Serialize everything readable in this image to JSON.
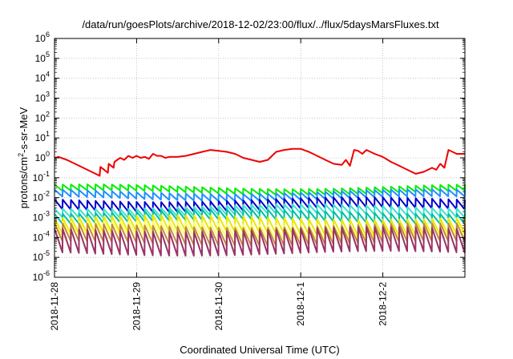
{
  "chart_data": {
    "type": "line",
    "title": "/data/run/goesPlots/archive/2018-12-02/23:00/flux/../flux/5daysMarsFluxes.txt",
    "xlabel": "Coordinated Universal Time (UTC)",
    "ylabel_base": "protons/cm",
    "ylabel_sup": "2",
    "ylabel_rest": "-s-sr-MeV",
    "ylog": true,
    "ylim": [
      -6,
      6
    ],
    "y_ticks": [
      -6,
      -5,
      -4,
      -3,
      -2,
      -1,
      0,
      1,
      2,
      3,
      4,
      5,
      6
    ],
    "y_tick_base": "10",
    "xlim": [
      0,
      5
    ],
    "x_ticks": [
      {
        "pos": 0,
        "label": "2018-11-28"
      },
      {
        "pos": 1,
        "label": "2018-11-29"
      },
      {
        "pos": 2,
        "label": "2018-11-30"
      },
      {
        "pos": 3,
        "label": "2018-12-1"
      },
      {
        "pos": 4,
        "label": "2018-12-2"
      }
    ],
    "grid": true,
    "sawtooth_period_days": 0.1,
    "series": [
      {
        "color": "#ee0000",
        "x": [
          0.0,
          0.05,
          0.15,
          0.3,
          0.45,
          0.55,
          0.56,
          0.65,
          0.66,
          0.72,
          0.73,
          0.8,
          0.85,
          0.9,
          0.95,
          1.0,
          1.05,
          1.1,
          1.15,
          1.2,
          1.25,
          1.3,
          1.35,
          1.4,
          1.5,
          1.6,
          1.7,
          1.8,
          1.9,
          2.0,
          2.1,
          2.2,
          2.3,
          2.4,
          2.5,
          2.6,
          2.7,
          2.8,
          2.9,
          3.0,
          3.1,
          3.2,
          3.3,
          3.4,
          3.5,
          3.55,
          3.6,
          3.65,
          3.7,
          3.75,
          3.8,
          3.85,
          3.9,
          4.0,
          4.1,
          4.2,
          4.3,
          4.4,
          4.5,
          4.6,
          4.65,
          4.7,
          4.75,
          4.8,
          4.85,
          4.9,
          5.0
        ],
        "y": [
          0.0,
          0.05,
          -0.1,
          -0.4,
          -0.7,
          -0.9,
          -0.45,
          -0.75,
          -0.3,
          -0.5,
          -0.2,
          0.0,
          -0.1,
          0.1,
          0.0,
          0.1,
          0.0,
          0.05,
          -0.05,
          0.2,
          0.1,
          0.1,
          0.0,
          0.05,
          0.05,
          0.1,
          0.2,
          0.3,
          0.4,
          0.35,
          0.3,
          0.2,
          0.0,
          -0.1,
          -0.2,
          -0.1,
          0.3,
          0.4,
          0.45,
          0.45,
          0.3,
          0.1,
          -0.1,
          -0.3,
          -0.35,
          -0.1,
          -0.4,
          0.4,
          0.35,
          0.2,
          0.4,
          0.3,
          0.2,
          0.05,
          -0.2,
          -0.4,
          -0.6,
          -0.8,
          -0.7,
          -0.5,
          -0.6,
          -0.3,
          -0.5,
          0.4,
          0.3,
          0.2,
          0.2
        ]
      },
      {
        "color": "#00ee00",
        "low": -1.75,
        "high": -1.45
      },
      {
        "color": "#1e90ff",
        "low": -2.05,
        "high": -1.7
      },
      {
        "color": "#0000cc",
        "low": -2.6,
        "high": -2.1
      },
      {
        "color": "#40e0d0",
        "low": -2.9,
        "high": -2.45
      },
      {
        "color": "#00c0a0",
        "low": -3.2,
        "high": -2.7
      },
      {
        "color": "#e8e800",
        "low": -3.8,
        "high": -3.0
      },
      {
        "color": "#ffff66",
        "low": -4.0,
        "high": -3.3
      },
      {
        "color": "#c08a3c",
        "low": -4.3,
        "high": -3.4
      },
      {
        "color": "#993366",
        "low": -4.8,
        "high": -3.6
      }
    ]
  }
}
